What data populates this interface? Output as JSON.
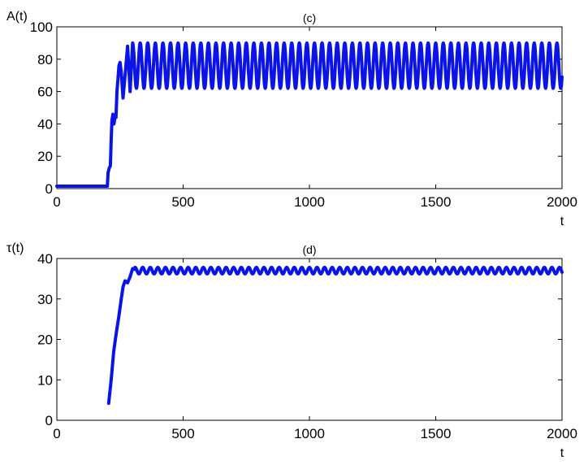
{
  "chart_data": [
    {
      "type": "line",
      "title": "(c)",
      "xlabel": "t",
      "ylabel": "A(t)",
      "xlim": [
        0,
        2000
      ],
      "ylim": [
        0,
        100
      ],
      "xticks": [
        "0",
        "500",
        "1000",
        "1500",
        "2000"
      ],
      "yticks": [
        "0",
        "20",
        "40",
        "60",
        "80",
        "100"
      ],
      "grid": false,
      "color": "#0a14e6",
      "series": [
        {
          "x": [
            0,
            200,
            203,
            208,
            212,
            215,
            218,
            222,
            226,
            230,
            234,
            238,
            242,
            246,
            250,
            255,
            262,
            270,
            280,
            290
          ],
          "y": [
            1.5,
            1.5,
            10,
            13,
            14,
            30,
            42,
            46,
            40,
            44,
            44,
            60,
            68,
            76,
            78,
            72,
            56,
            70,
            88,
            60
          ]
        }
      ],
      "oscillation": {
        "start": 300,
        "end": 2000,
        "period": 30,
        "max": 90,
        "min": 62
      }
    },
    {
      "type": "line",
      "title": "(d)",
      "xlabel": "t",
      "ylabel": "τ(t)",
      "xlim": [
        0,
        2000
      ],
      "ylim": [
        0,
        40
      ],
      "xticks": [
        "0",
        "500",
        "1000",
        "1500",
        "2000"
      ],
      "yticks": [
        "0",
        "10",
        "20",
        "30",
        "40"
      ],
      "grid": false,
      "color": "#0a14e6",
      "series": [
        {
          "x": [
            205,
            215,
            225,
            235,
            245,
            255,
            262,
            270,
            280,
            290,
            300,
            310
          ],
          "y": [
            4.2,
            10,
            17,
            21.5,
            25.5,
            30,
            33,
            34.5,
            34,
            35.5,
            37.5,
            37.3
          ]
        }
      ],
      "oscillation": {
        "start": 310,
        "end": 2000,
        "period": 30,
        "max": 37.8,
        "min": 36.2
      }
    }
  ]
}
